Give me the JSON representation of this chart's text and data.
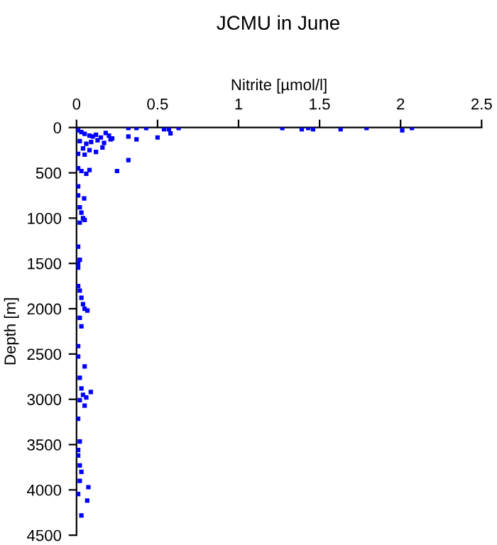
{
  "chart_data": {
    "type": "scatter",
    "title": "JCMU in June",
    "xlabel": "Nitrite [µmol/l]",
    "ylabel": "Depth [m]",
    "xlim": [
      0,
      2.5
    ],
    "xticks": [
      0,
      0.5,
      1,
      1.5,
      2,
      2.5
    ],
    "ylim": [
      4500,
      0
    ],
    "yticks": [
      0,
      500,
      1000,
      1500,
      2000,
      2500,
      3000,
      3500,
      4000,
      4500
    ],
    "grid": false,
    "legend": false,
    "marker": "square",
    "series": [
      {
        "color": "#0000ff",
        "x": [
          0.32,
          0.37,
          0.43,
          0.54,
          0.57,
          0.63,
          1.27,
          1.39,
          1.43,
          1.46,
          1.63,
          1.79,
          2.01,
          2.07,
          0.01,
          0.03,
          0.05,
          0.08,
          0.1,
          0.12,
          0.15,
          0.18,
          0.2,
          0.22,
          0.02,
          0.06,
          0.09,
          0.13,
          0.17,
          0.21,
          0.32,
          0.37,
          0.5,
          0.58,
          0.04,
          0.08,
          0.12,
          0.16,
          0.01,
          0.05,
          0.32,
          0.25,
          0.01,
          0.03,
          0.06,
          0.08,
          0.01,
          0.047,
          0.01,
          0.02,
          0.03,
          0.04,
          0.05,
          0.02,
          0.01,
          0.02,
          0.01,
          0.01,
          0.01,
          0.02,
          0.03,
          0.04,
          0.05,
          0.067,
          0.02,
          0.03,
          0.01,
          0.01,
          0.05,
          0.02,
          0.03,
          0.04,
          0.088,
          0.06,
          0.05,
          0.02,
          0.01,
          0.02,
          0.01,
          0.01,
          0.02,
          0.03,
          0.02,
          0.073,
          0.01,
          0.066,
          0.03
        ],
        "values": [
          5,
          5,
          5,
          20,
          20,
          5,
          5,
          20,
          5,
          20,
          20,
          5,
          30,
          5,
          30,
          50,
          70,
          90,
          100,
          80,
          110,
          60,
          90,
          120,
          150,
          180,
          160,
          140,
          170,
          130,
          100,
          130,
          110,
          65,
          230,
          250,
          270,
          220,
          290,
          300,
          360,
          480,
          450,
          480,
          510,
          470,
          650,
          783,
          750,
          880,
          940,
          1000,
          1020,
          1050,
          1316,
          1460,
          1497,
          1547,
          1750,
          1800,
          1880,
          1950,
          2000,
          2020,
          2100,
          2194,
          2413,
          2528,
          2637,
          2763,
          2880,
          2950,
          2920,
          2980,
          3070,
          3010,
          3215,
          3465,
          3560,
          3620,
          3730,
          3800,
          3900,
          3970,
          4045,
          4117,
          4283
        ]
      }
    ]
  }
}
